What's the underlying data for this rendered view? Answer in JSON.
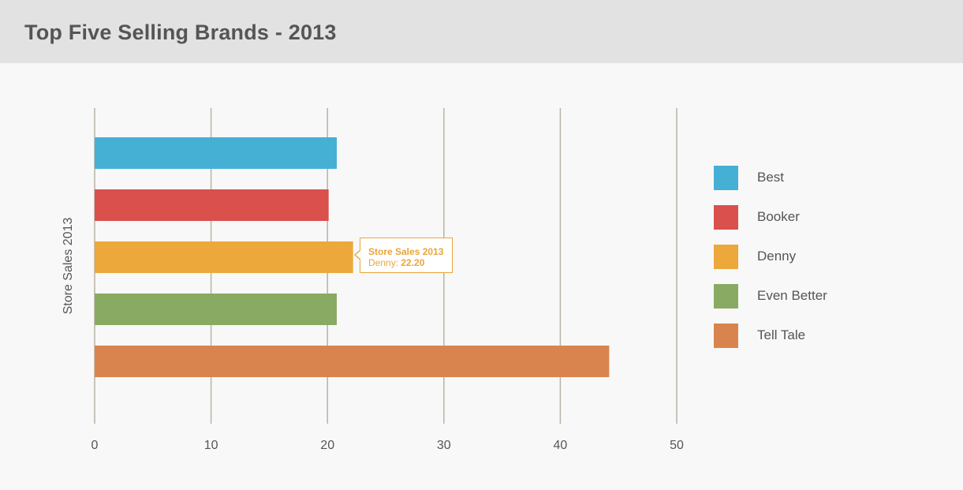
{
  "header": {
    "title": "Top Five Selling Brands - 2013"
  },
  "chart_data": {
    "type": "bar",
    "orientation": "horizontal",
    "title": "Top Five Selling Brands - 2013",
    "ylabel": "Store Sales 2013",
    "xlabel": "",
    "xlim": [
      0,
      50
    ],
    "xticks": [
      0,
      10,
      20,
      30,
      40,
      50
    ],
    "grid": true,
    "legend_position": "right",
    "categories": [
      "Best",
      "Booker",
      "Denny",
      "Even Better",
      "Tell Tale"
    ],
    "values": [
      20.8,
      20.1,
      22.2,
      20.8,
      44.2
    ],
    "colors": [
      "#46b0d4",
      "#d9504c",
      "#eca83a",
      "#89aa63",
      "#d9844e"
    ],
    "series_name": "Store Sales 2013",
    "tooltip": {
      "series": "Store Sales 2013",
      "category": "Denny",
      "separator": ":",
      "value": "22.20"
    }
  }
}
